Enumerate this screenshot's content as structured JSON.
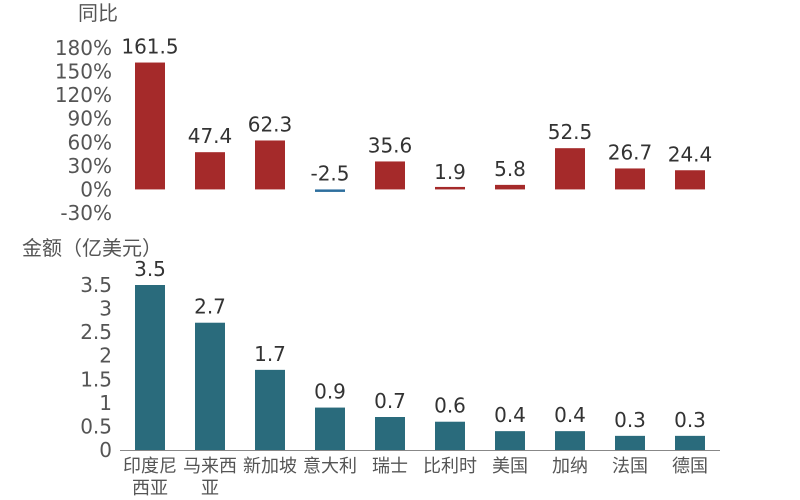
{
  "chart_data": [
    {
      "type": "bar",
      "ylabel": "同比",
      "yticks": [
        "180%",
        "150%",
        "120%",
        "90%",
        "60%",
        "30%",
        "0%",
        "-30%"
      ],
      "ylim": [
        -30,
        180
      ],
      "categories": [
        "印度尼西亚",
        "马来西亚",
        "新加坡",
        "意大利",
        "瑞士",
        "比利时",
        "美国",
        "加纳",
        "法国",
        "德国"
      ],
      "values": [
        161.5,
        47.4,
        62.3,
        -2.5,
        35.6,
        1.9,
        5.8,
        52.5,
        26.7,
        24.4
      ],
      "value_labels": [
        "161.5",
        "47.4",
        "62.3",
        "-2.5",
        "35.6",
        "1.9",
        "5.8",
        "52.5",
        "26.7",
        "24.4"
      ],
      "color_positive": "#a52a2a",
      "color_negative": "#2e6f9e"
    },
    {
      "type": "bar",
      "ylabel": "金额（亿美元）",
      "yticks": [
        "3.5",
        "3",
        "2.5",
        "2",
        "1.5",
        "1",
        "0.5",
        "0"
      ],
      "ylim": [
        0,
        3.5
      ],
      "categories": [
        "印度尼西亚",
        "马来西亚",
        "新加坡",
        "意大利",
        "瑞士",
        "比利时",
        "美国",
        "加纳",
        "法国",
        "德国"
      ],
      "category_lines": [
        [
          "印度尼",
          "西亚"
        ],
        [
          "马来西",
          "亚"
        ],
        [
          "新加坡"
        ],
        [
          "意大利"
        ],
        [
          "瑞士"
        ],
        [
          "比利时"
        ],
        [
          "美国"
        ],
        [
          "加纳"
        ],
        [
          "法国"
        ],
        [
          "德国"
        ]
      ],
      "values": [
        3.5,
        2.7,
        1.7,
        0.9,
        0.7,
        0.6,
        0.4,
        0.4,
        0.3,
        0.3
      ],
      "value_labels": [
        "3.5",
        "2.7",
        "1.7",
        "0.9",
        "0.7",
        "0.6",
        "0.4",
        "0.4",
        "0.3",
        "0.3"
      ],
      "color": "#2a6b7c"
    }
  ]
}
